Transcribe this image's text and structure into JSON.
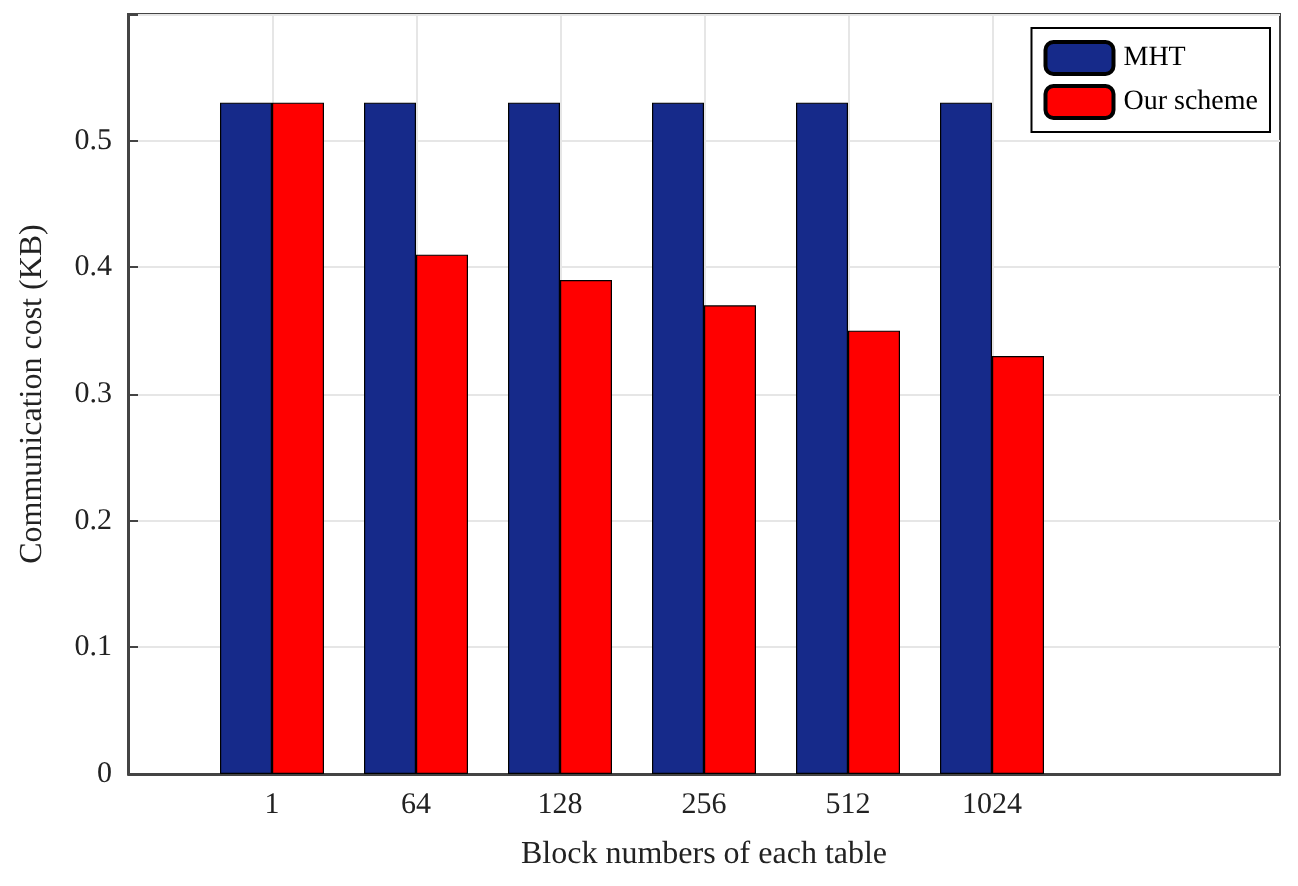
{
  "chart_data": {
    "type": "bar",
    "xlabel": "Block numbers of each table",
    "ylabel": "Communication cost (KB)",
    "categories": [
      "1",
      "64",
      "128",
      "256",
      "512",
      "1024"
    ],
    "series": [
      {
        "name": "MHT",
        "color": "#162a8a",
        "values": [
          0.53,
          0.53,
          0.53,
          0.53,
          0.53,
          0.53
        ]
      },
      {
        "name": "Our scheme",
        "color": "#ff0000",
        "values": [
          0.53,
          0.41,
          0.39,
          0.37,
          0.35,
          0.33
        ]
      }
    ],
    "ylim": [
      0,
      0.6
    ],
    "yticks": [
      0,
      0.1,
      0.2,
      0.3,
      0.4,
      0.5,
      {
        "value": 0.6,
        "label": null
      }
    ],
    "grid": true,
    "legend": "top right"
  }
}
